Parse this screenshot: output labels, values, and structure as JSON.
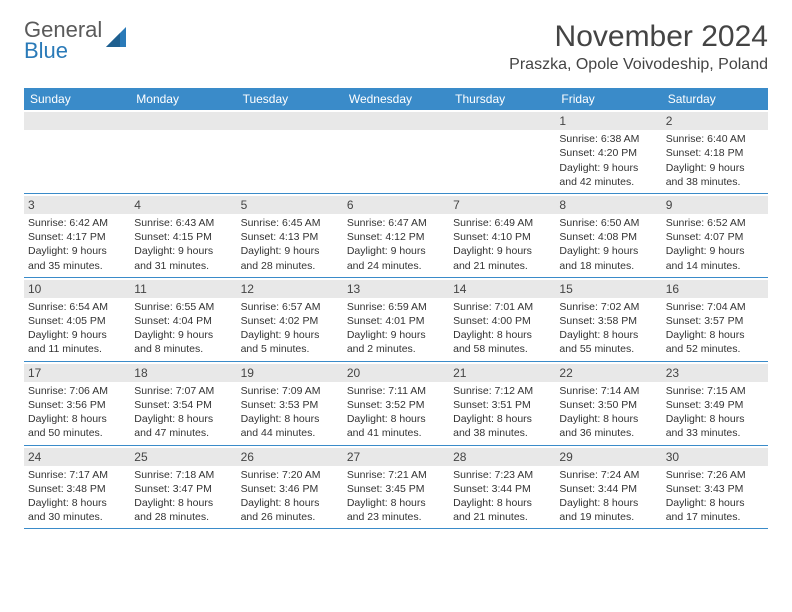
{
  "brand": {
    "line1": "General",
    "line2": "Blue"
  },
  "colors": {
    "header_bg": "#3a8bc9",
    "daynum_bg": "#e8e8e8",
    "divider": "#3a8bc9",
    "logo_gray": "#5a5a5a",
    "logo_blue": "#2a7ab8"
  },
  "title": "November 2024",
  "location": "Praszka, Opole Voivodeship, Poland",
  "weekdays": [
    "Sunday",
    "Monday",
    "Tuesday",
    "Wednesday",
    "Thursday",
    "Friday",
    "Saturday"
  ],
  "weeks": [
    [
      {
        "n": "",
        "sr": "",
        "ss": "",
        "dl": ""
      },
      {
        "n": "",
        "sr": "",
        "ss": "",
        "dl": ""
      },
      {
        "n": "",
        "sr": "",
        "ss": "",
        "dl": ""
      },
      {
        "n": "",
        "sr": "",
        "ss": "",
        "dl": ""
      },
      {
        "n": "",
        "sr": "",
        "ss": "",
        "dl": ""
      },
      {
        "n": "1",
        "sr": "Sunrise: 6:38 AM",
        "ss": "Sunset: 4:20 PM",
        "dl": "Daylight: 9 hours and 42 minutes."
      },
      {
        "n": "2",
        "sr": "Sunrise: 6:40 AM",
        "ss": "Sunset: 4:18 PM",
        "dl": "Daylight: 9 hours and 38 minutes."
      }
    ],
    [
      {
        "n": "3",
        "sr": "Sunrise: 6:42 AM",
        "ss": "Sunset: 4:17 PM",
        "dl": "Daylight: 9 hours and 35 minutes."
      },
      {
        "n": "4",
        "sr": "Sunrise: 6:43 AM",
        "ss": "Sunset: 4:15 PM",
        "dl": "Daylight: 9 hours and 31 minutes."
      },
      {
        "n": "5",
        "sr": "Sunrise: 6:45 AM",
        "ss": "Sunset: 4:13 PM",
        "dl": "Daylight: 9 hours and 28 minutes."
      },
      {
        "n": "6",
        "sr": "Sunrise: 6:47 AM",
        "ss": "Sunset: 4:12 PM",
        "dl": "Daylight: 9 hours and 24 minutes."
      },
      {
        "n": "7",
        "sr": "Sunrise: 6:49 AM",
        "ss": "Sunset: 4:10 PM",
        "dl": "Daylight: 9 hours and 21 minutes."
      },
      {
        "n": "8",
        "sr": "Sunrise: 6:50 AM",
        "ss": "Sunset: 4:08 PM",
        "dl": "Daylight: 9 hours and 18 minutes."
      },
      {
        "n": "9",
        "sr": "Sunrise: 6:52 AM",
        "ss": "Sunset: 4:07 PM",
        "dl": "Daylight: 9 hours and 14 minutes."
      }
    ],
    [
      {
        "n": "10",
        "sr": "Sunrise: 6:54 AM",
        "ss": "Sunset: 4:05 PM",
        "dl": "Daylight: 9 hours and 11 minutes."
      },
      {
        "n": "11",
        "sr": "Sunrise: 6:55 AM",
        "ss": "Sunset: 4:04 PM",
        "dl": "Daylight: 9 hours and 8 minutes."
      },
      {
        "n": "12",
        "sr": "Sunrise: 6:57 AM",
        "ss": "Sunset: 4:02 PM",
        "dl": "Daylight: 9 hours and 5 minutes."
      },
      {
        "n": "13",
        "sr": "Sunrise: 6:59 AM",
        "ss": "Sunset: 4:01 PM",
        "dl": "Daylight: 9 hours and 2 minutes."
      },
      {
        "n": "14",
        "sr": "Sunrise: 7:01 AM",
        "ss": "Sunset: 4:00 PM",
        "dl": "Daylight: 8 hours and 58 minutes."
      },
      {
        "n": "15",
        "sr": "Sunrise: 7:02 AM",
        "ss": "Sunset: 3:58 PM",
        "dl": "Daylight: 8 hours and 55 minutes."
      },
      {
        "n": "16",
        "sr": "Sunrise: 7:04 AM",
        "ss": "Sunset: 3:57 PM",
        "dl": "Daylight: 8 hours and 52 minutes."
      }
    ],
    [
      {
        "n": "17",
        "sr": "Sunrise: 7:06 AM",
        "ss": "Sunset: 3:56 PM",
        "dl": "Daylight: 8 hours and 50 minutes."
      },
      {
        "n": "18",
        "sr": "Sunrise: 7:07 AM",
        "ss": "Sunset: 3:54 PM",
        "dl": "Daylight: 8 hours and 47 minutes."
      },
      {
        "n": "19",
        "sr": "Sunrise: 7:09 AM",
        "ss": "Sunset: 3:53 PM",
        "dl": "Daylight: 8 hours and 44 minutes."
      },
      {
        "n": "20",
        "sr": "Sunrise: 7:11 AM",
        "ss": "Sunset: 3:52 PM",
        "dl": "Daylight: 8 hours and 41 minutes."
      },
      {
        "n": "21",
        "sr": "Sunrise: 7:12 AM",
        "ss": "Sunset: 3:51 PM",
        "dl": "Daylight: 8 hours and 38 minutes."
      },
      {
        "n": "22",
        "sr": "Sunrise: 7:14 AM",
        "ss": "Sunset: 3:50 PM",
        "dl": "Daylight: 8 hours and 36 minutes."
      },
      {
        "n": "23",
        "sr": "Sunrise: 7:15 AM",
        "ss": "Sunset: 3:49 PM",
        "dl": "Daylight: 8 hours and 33 minutes."
      }
    ],
    [
      {
        "n": "24",
        "sr": "Sunrise: 7:17 AM",
        "ss": "Sunset: 3:48 PM",
        "dl": "Daylight: 8 hours and 30 minutes."
      },
      {
        "n": "25",
        "sr": "Sunrise: 7:18 AM",
        "ss": "Sunset: 3:47 PM",
        "dl": "Daylight: 8 hours and 28 minutes."
      },
      {
        "n": "26",
        "sr": "Sunrise: 7:20 AM",
        "ss": "Sunset: 3:46 PM",
        "dl": "Daylight: 8 hours and 26 minutes."
      },
      {
        "n": "27",
        "sr": "Sunrise: 7:21 AM",
        "ss": "Sunset: 3:45 PM",
        "dl": "Daylight: 8 hours and 23 minutes."
      },
      {
        "n": "28",
        "sr": "Sunrise: 7:23 AM",
        "ss": "Sunset: 3:44 PM",
        "dl": "Daylight: 8 hours and 21 minutes."
      },
      {
        "n": "29",
        "sr": "Sunrise: 7:24 AM",
        "ss": "Sunset: 3:44 PM",
        "dl": "Daylight: 8 hours and 19 minutes."
      },
      {
        "n": "30",
        "sr": "Sunrise: 7:26 AM",
        "ss": "Sunset: 3:43 PM",
        "dl": "Daylight: 8 hours and 17 minutes."
      }
    ]
  ]
}
